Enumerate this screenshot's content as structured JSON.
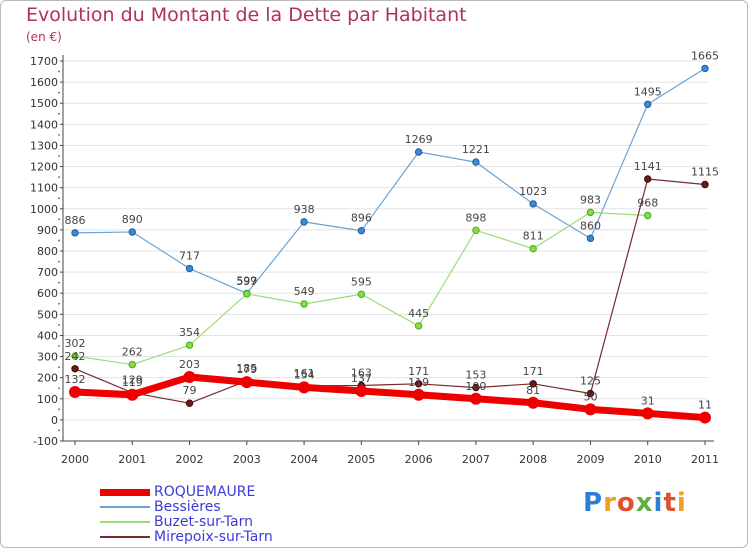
{
  "title": "Evolution du Montant de la Dette par Habitant",
  "unit": "(en €)",
  "brand": "Proxiti",
  "colors": {
    "title": "#b03060",
    "legend_text": "#3b3bd9",
    "axis": "#333333",
    "grid": "#e3e3e3"
  },
  "chart_data": {
    "type": "line",
    "x": [
      "2000",
      "2001",
      "2002",
      "2003",
      "2004",
      "2005",
      "2006",
      "2007",
      "2008",
      "2009",
      "2010",
      "2011"
    ],
    "ylim": [
      -100,
      1700
    ],
    "yticks": [
      -100,
      0,
      100,
      200,
      300,
      400,
      500,
      600,
      700,
      800,
      900,
      1000,
      1100,
      1200,
      1300,
      1400,
      1500,
      1600,
      1700
    ],
    "grid": true,
    "legend_position": "bottom-left",
    "series": [
      {
        "name": "ROQUEMAURE",
        "color": "#ee0000",
        "width": 7,
        "point_fill": "#ee0000",
        "point_stroke": "#ee0000",
        "values": [
          132,
          119,
          203,
          179,
          154,
          137,
          119,
          100,
          81,
          50,
          31,
          11
        ]
      },
      {
        "name": "Bessières",
        "color": "#6aa3d6",
        "width": 1.2,
        "point_fill": "#3b8ad8",
        "point_stroke": "#1f5c99",
        "values": [
          886,
          890,
          717,
          599,
          938,
          896,
          1269,
          1221,
          1023,
          860,
          1495,
          1665
        ]
      },
      {
        "name": "Buzet-sur-Tarn",
        "color": "#99dd77",
        "width": 1.2,
        "point_fill": "#88dd44",
        "point_stroke": "#44aa22",
        "values": [
          302,
          262,
          354,
          597,
          549,
          595,
          445,
          898,
          811,
          983,
          968,
          null
        ]
      },
      {
        "name": "Mirepoix-sur-Tarn",
        "color": "#7a2a2a",
        "width": 1.2,
        "point_fill": "#6b1a1a",
        "point_stroke": "#3a0a0a",
        "values": [
          242,
          129,
          79,
          185,
          161,
          163,
          171,
          153,
          171,
          125,
          1141,
          1115
        ]
      }
    ],
    "labels": [
      {
        "series": 0,
        "i": 0,
        "text": "132"
      },
      {
        "series": 0,
        "i": 1,
        "text": "119"
      },
      {
        "series": 0,
        "i": 2,
        "text": "203"
      },
      {
        "series": 0,
        "i": 3,
        "text": "179"
      },
      {
        "series": 0,
        "i": 4,
        "text": "154"
      },
      {
        "series": 0,
        "i": 5,
        "text": "137"
      },
      {
        "series": 0,
        "i": 6,
        "text": "119"
      },
      {
        "series": 0,
        "i": 7,
        "text": "100"
      },
      {
        "series": 0,
        "i": 8,
        "text": "81"
      },
      {
        "series": 0,
        "i": 9,
        "text": "50"
      },
      {
        "series": 0,
        "i": 10,
        "text": "31"
      },
      {
        "series": 0,
        "i": 11,
        "text": "11"
      },
      {
        "series": 1,
        "i": 0,
        "text": "886"
      },
      {
        "series": 1,
        "i": 1,
        "text": "890"
      },
      {
        "series": 1,
        "i": 2,
        "text": "717"
      },
      {
        "series": 1,
        "i": 3,
        "text": "599"
      },
      {
        "series": 1,
        "i": 4,
        "text": "938"
      },
      {
        "series": 1,
        "i": 5,
        "text": "896"
      },
      {
        "series": 1,
        "i": 6,
        "text": "1269"
      },
      {
        "series": 1,
        "i": 7,
        "text": "1221"
      },
      {
        "series": 1,
        "i": 8,
        "text": "1023"
      },
      {
        "series": 1,
        "i": 9,
        "text": "860"
      },
      {
        "series": 1,
        "i": 10,
        "text": "1495"
      },
      {
        "series": 1,
        "i": 11,
        "text": "1665"
      },
      {
        "series": 2,
        "i": 0,
        "text": "302"
      },
      {
        "series": 2,
        "i": 1,
        "text": "262"
      },
      {
        "series": 2,
        "i": 2,
        "text": "354"
      },
      {
        "series": 2,
        "i": 3,
        "text": "597"
      },
      {
        "series": 2,
        "i": 4,
        "text": "549"
      },
      {
        "series": 2,
        "i": 5,
        "text": "595"
      },
      {
        "series": 2,
        "i": 6,
        "text": "445"
      },
      {
        "series": 2,
        "i": 7,
        "text": "898"
      },
      {
        "series": 2,
        "i": 8,
        "text": "811"
      },
      {
        "series": 2,
        "i": 9,
        "text": "983"
      },
      {
        "series": 2,
        "i": 10,
        "text": "968"
      },
      {
        "series": 3,
        "i": 0,
        "text": "242"
      },
      {
        "series": 3,
        "i": 1,
        "text": "129"
      },
      {
        "series": 3,
        "i": 2,
        "text": "79"
      },
      {
        "series": 3,
        "i": 3,
        "text": "185"
      },
      {
        "series": 3,
        "i": 4,
        "text": "161"
      },
      {
        "series": 3,
        "i": 5,
        "text": "163"
      },
      {
        "series": 3,
        "i": 6,
        "text": "171"
      },
      {
        "series": 3,
        "i": 7,
        "text": "153"
      },
      {
        "series": 3,
        "i": 8,
        "text": "171"
      },
      {
        "series": 3,
        "i": 9,
        "text": "125"
      },
      {
        "series": 3,
        "i": 10,
        "text": "1141"
      },
      {
        "series": 3,
        "i": 11,
        "text": "1115"
      }
    ]
  }
}
